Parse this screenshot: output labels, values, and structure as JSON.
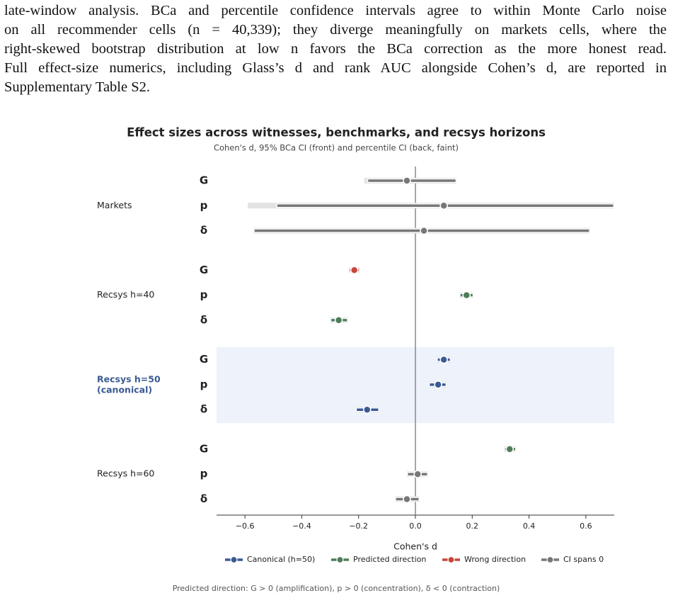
{
  "text": {
    "lines": [
      "late-window analysis. BCa and percentile confidence intervals agree to within Monte Carlo noise",
      "on all recommender cells (n = 40,339); they diverge meaningfully on markets cells, where the",
      "right-skewed bootstrap distribution at low n favors the BCa correction as the more honest read.",
      "Full effect-size numerics, including Glass’s d and rank AUC alongside Cohen’s d, are reported in",
      "Supplementary Table S2."
    ]
  },
  "chart_data": {
    "type": "forest",
    "title": "Effect sizes across witnesses, benchmarks, and recsys horizons",
    "subtitle": "Cohen's d, 95% BCa CI (front) and percentile CI (back, faint)",
    "x_label": "Cohen's d",
    "xlim": [
      -0.7,
      0.7
    ],
    "xticks": [
      {
        "value": -0.6,
        "label": "−0.6"
      },
      {
        "value": -0.4,
        "label": "−0.4"
      },
      {
        "value": -0.2,
        "label": "−0.2"
      },
      {
        "value": 0,
        "label": "0.0"
      },
      0.2,
      0.4,
      0.6
    ],
    "groups": [
      {
        "name": "Markets",
        "highlight": false,
        "rows": [
          {
            "label": "G",
            "value": -0.03,
            "bca": [
              -0.17,
              0.145
            ],
            "pct": [
              -0.18,
              0.145
            ],
            "color": "#777777"
          },
          {
            "label": "p",
            "value": 0.1,
            "bca": [
              -0.49,
              0.7
            ],
            "pct": [
              -0.59,
              0.7
            ],
            "color": "#777777"
          },
          {
            "label": "δ",
            "value": 0.03,
            "bca": [
              -0.57,
              0.615
            ],
            "pct": [
              -0.57,
              0.615
            ],
            "color": "#777777"
          }
        ]
      },
      {
        "name": "Recsys h=40",
        "highlight": false,
        "rows": [
          {
            "label": "G",
            "value": -0.215,
            "bca": [
              -0.235,
              -0.195
            ],
            "pct": [
              -0.235,
              -0.195
            ],
            "color": "#c7473a"
          },
          {
            "label": "p",
            "value": 0.18,
            "bca": [
              0.155,
              0.205
            ],
            "pct": [
              0.155,
              0.205
            ],
            "color": "#4f7d5a"
          },
          {
            "label": "δ",
            "value": -0.27,
            "bca": [
              -0.3,
              -0.237
            ],
            "pct": [
              -0.3,
              -0.237
            ],
            "color": "#4f7d5a"
          }
        ]
      },
      {
        "name": "Recsys h=50\n(canonical)",
        "highlight": true,
        "rows": [
          {
            "label": "G",
            "value": 0.1,
            "bca": [
              0.075,
              0.125
            ],
            "pct": [
              0.075,
              0.125
            ],
            "color": "#3a5a94"
          },
          {
            "label": "p",
            "value": 0.08,
            "bca": [
              0.047,
              0.11
            ],
            "pct": [
              0.047,
              0.11
            ],
            "color": "#3a5a94"
          },
          {
            "label": "δ",
            "value": -0.17,
            "bca": [
              -0.21,
              -0.127
            ],
            "pct": [
              -0.21,
              -0.127
            ],
            "color": "#3a5a94"
          }
        ]
      },
      {
        "name": "Recsys h=60",
        "highlight": false,
        "rows": [
          {
            "label": "G",
            "value": 0.332,
            "bca": [
              0.312,
              0.355
            ],
            "pct": [
              0.312,
              0.355
            ],
            "color": "#4f7d5a"
          },
          {
            "label": "p",
            "value": 0.008,
            "bca": [
              -0.03,
              0.045
            ],
            "pct": [
              -0.03,
              0.045
            ],
            "color": "#777777"
          },
          {
            "label": "δ",
            "value": -0.03,
            "bca": [
              -0.072,
              0.015
            ],
            "pct": [
              -0.072,
              0.015
            ],
            "color": "#777777"
          }
        ]
      }
    ],
    "legend": [
      {
        "name": "Canonical (h=50)",
        "color": "#3a5a94"
      },
      {
        "name": "Predicted direction",
        "color": "#4f7d5a"
      },
      {
        "name": "Wrong direction",
        "color": "#c7473a"
      },
      {
        "name": "CI spans 0",
        "color": "#777777"
      }
    ],
    "note": "Predicted direction:  G > 0 (amplification),  p > 0 (concentration),  δ < 0 (contraction)"
  }
}
